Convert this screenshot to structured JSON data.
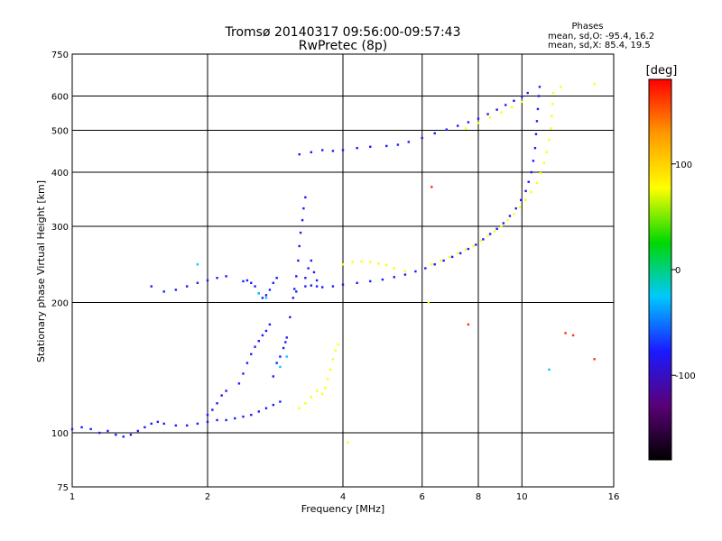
{
  "chart_data": {
    "type": "scatter",
    "title": "Tromsø 20140317 09:56:00-09:57:43",
    "subtitle": "RwPretec (8p)",
    "xlabel": "Frequency [MHz]",
    "ylabel": "Stationary phase Virtual Height [km]",
    "x_scale": "log",
    "y_scale": "log",
    "xlim": [
      1,
      16
    ],
    "ylim": [
      75,
      750
    ],
    "x_ticks": [
      1,
      2,
      4,
      6,
      8,
      10,
      16
    ],
    "y_ticks": [
      75,
      100,
      200,
      300,
      400,
      500,
      600,
      750
    ],
    "grid": true,
    "stats": {
      "heading": "Phases",
      "line_o": "mean, sd,O: -95.4, 16.2",
      "line_x": "mean, sd,X:  85.4, 19.5"
    },
    "colorbar": {
      "label": "[deg]",
      "range": [
        -180,
        180
      ],
      "ticks": [
        100,
        0,
        -100
      ],
      "colors": [
        "#000000",
        "#5a0078",
        "#1a1aff",
        "#00c8ff",
        "#00d800",
        "#ffff00",
        "#ff9900",
        "#ff0000"
      ]
    },
    "series": [
      {
        "color": "#1a1aff",
        "points": [
          [
            1.0,
            102
          ],
          [
            1.05,
            103
          ],
          [
            1.1,
            102
          ],
          [
            1.15,
            100
          ],
          [
            1.2,
            101
          ],
          [
            1.25,
            99
          ],
          [
            1.3,
            98
          ],
          [
            1.35,
            99
          ],
          [
            1.4,
            101
          ],
          [
            1.45,
            103
          ],
          [
            1.5,
            105
          ],
          [
            1.55,
            106
          ],
          [
            1.6,
            105
          ],
          [
            1.7,
            104
          ],
          [
            1.8,
            104
          ],
          [
            1.9,
            105
          ],
          [
            2.0,
            106
          ],
          [
            2.1,
            107
          ],
          [
            2.2,
            107
          ],
          [
            2.3,
            108
          ],
          [
            2.4,
            109
          ],
          [
            2.5,
            110
          ],
          [
            2.6,
            112
          ],
          [
            2.7,
            114
          ],
          [
            2.8,
            116
          ],
          [
            2.9,
            118
          ],
          [
            2.0,
            110
          ],
          [
            2.05,
            113
          ],
          [
            2.1,
            117
          ],
          [
            2.15,
            122
          ],
          [
            2.2,
            125
          ],
          [
            2.35,
            130
          ],
          [
            2.4,
            137
          ],
          [
            2.45,
            145
          ],
          [
            2.5,
            152
          ],
          [
            2.55,
            158
          ],
          [
            2.6,
            163
          ],
          [
            2.65,
            168
          ],
          [
            2.7,
            172
          ],
          [
            2.75,
            178
          ],
          [
            2.8,
            135
          ],
          [
            2.85,
            145
          ],
          [
            2.9,
            150
          ],
          [
            2.95,
            157
          ],
          [
            2.98,
            162
          ],
          [
            3.0,
            166
          ],
          [
            3.05,
            185
          ],
          [
            3.1,
            205
          ],
          [
            3.12,
            215
          ],
          [
            3.15,
            230
          ],
          [
            3.18,
            250
          ],
          [
            3.2,
            270
          ],
          [
            3.22,
            290
          ],
          [
            3.25,
            310
          ],
          [
            3.27,
            330
          ],
          [
            3.3,
            350
          ],
          [
            3.15,
            212
          ],
          [
            3.3,
            218
          ],
          [
            3.4,
            219
          ],
          [
            3.5,
            218
          ],
          [
            3.6,
            217
          ],
          [
            3.8,
            218
          ],
          [
            4.0,
            220
          ],
          [
            4.3,
            222
          ],
          [
            4.6,
            224
          ],
          [
            4.9,
            226
          ],
          [
            5.2,
            229
          ],
          [
            5.5,
            232
          ],
          [
            5.8,
            236
          ],
          [
            6.1,
            240
          ],
          [
            6.4,
            245
          ],
          [
            6.7,
            250
          ],
          [
            7.0,
            255
          ],
          [
            7.3,
            260
          ],
          [
            7.6,
            266
          ],
          [
            7.9,
            272
          ],
          [
            8.2,
            280
          ],
          [
            8.5,
            288
          ],
          [
            8.8,
            296
          ],
          [
            9.1,
            305
          ],
          [
            9.4,
            317
          ],
          [
            9.7,
            330
          ],
          [
            9.95,
            345
          ],
          [
            10.2,
            362
          ],
          [
            10.35,
            380
          ],
          [
            10.5,
            400
          ],
          [
            10.6,
            425
          ],
          [
            10.7,
            455
          ],
          [
            10.75,
            490
          ],
          [
            10.8,
            525
          ],
          [
            10.85,
            560
          ],
          [
            10.9,
            600
          ],
          [
            10.95,
            630
          ],
          [
            2.4,
            224
          ],
          [
            2.45,
            225
          ],
          [
            2.5,
            222
          ],
          [
            2.55,
            218
          ],
          [
            2.6,
            210
          ],
          [
            2.65,
            205
          ],
          [
            2.7,
            208
          ],
          [
            2.75,
            214
          ],
          [
            2.8,
            222
          ],
          [
            2.85,
            228
          ],
          [
            3.2,
            440
          ],
          [
            3.4,
            445
          ],
          [
            3.6,
            450
          ],
          [
            3.8,
            448
          ],
          [
            4.0,
            450
          ],
          [
            4.3,
            455
          ],
          [
            4.6,
            458
          ],
          [
            5.0,
            460
          ],
          [
            5.3,
            463
          ],
          [
            5.6,
            470
          ],
          [
            6.0,
            480
          ],
          [
            6.4,
            492
          ],
          [
            6.8,
            502
          ],
          [
            7.2,
            512
          ],
          [
            7.6,
            522
          ],
          [
            8.0,
            532
          ],
          [
            8.4,
            545
          ],
          [
            8.8,
            558
          ],
          [
            9.2,
            572
          ],
          [
            9.6,
            585
          ],
          [
            10.0,
            598
          ],
          [
            10.3,
            610
          ],
          [
            1.5,
            218
          ],
          [
            1.6,
            212
          ],
          [
            1.7,
            214
          ],
          [
            1.8,
            218
          ],
          [
            1.9,
            222
          ],
          [
            2.0,
            225
          ],
          [
            2.1,
            228
          ],
          [
            2.2,
            230
          ],
          [
            3.3,
            228
          ],
          [
            3.35,
            240
          ],
          [
            3.4,
            250
          ],
          [
            3.45,
            235
          ],
          [
            3.5,
            225
          ]
        ]
      },
      {
        "color": "#ffff00",
        "points": [
          [
            3.6,
            123
          ],
          [
            3.65,
            127
          ],
          [
            3.7,
            133
          ],
          [
            3.75,
            140
          ],
          [
            3.8,
            148
          ],
          [
            3.85,
            155
          ],
          [
            3.9,
            160
          ],
          [
            3.2,
            114
          ],
          [
            3.3,
            117
          ],
          [
            3.4,
            121
          ],
          [
            3.5,
            125
          ],
          [
            4.0,
            245
          ],
          [
            4.2,
            248
          ],
          [
            4.4,
            249
          ],
          [
            4.6,
            248
          ],
          [
            4.8,
            246
          ],
          [
            5.0,
            244
          ],
          [
            5.2,
            240
          ],
          [
            5.5,
            236
          ],
          [
            6.3,
            245
          ],
          [
            6.6,
            250
          ],
          [
            6.9,
            255
          ],
          [
            7.2,
            260
          ],
          [
            7.5,
            265
          ],
          [
            7.8,
            270
          ],
          [
            8.1,
            278
          ],
          [
            8.4,
            285
          ],
          [
            8.7,
            292
          ],
          [
            9.0,
            300
          ],
          [
            9.3,
            310
          ],
          [
            9.6,
            320
          ],
          [
            9.9,
            332
          ],
          [
            10.2,
            345
          ],
          [
            10.5,
            360
          ],
          [
            10.8,
            378
          ],
          [
            11.0,
            398
          ],
          [
            11.2,
            420
          ],
          [
            11.35,
            445
          ],
          [
            11.5,
            475
          ],
          [
            11.6,
            505
          ],
          [
            11.65,
            540
          ],
          [
            11.7,
            575
          ],
          [
            11.75,
            610
          ],
          [
            7.5,
            505
          ],
          [
            8.0,
            520
          ],
          [
            8.5,
            535
          ],
          [
            9.0,
            550
          ],
          [
            9.5,
            565
          ],
          [
            10.0,
            582
          ],
          [
            12.2,
            630
          ],
          [
            14.5,
            640
          ],
          [
            6.2,
            200
          ],
          [
            4.1,
            95
          ]
        ]
      },
      {
        "color": "#ff3300",
        "points": [
          [
            12.5,
            170
          ],
          [
            13.0,
            168
          ],
          [
            7.6,
            178
          ],
          [
            6.3,
            370
          ],
          [
            14.5,
            148
          ]
        ]
      },
      {
        "color": "#00c8ff",
        "points": [
          [
            2.6,
            210
          ],
          [
            2.7,
            205
          ],
          [
            2.9,
            142
          ],
          [
            3.0,
            150
          ],
          [
            11.5,
            140
          ],
          [
            1.9,
            245
          ]
        ]
      }
    ]
  }
}
